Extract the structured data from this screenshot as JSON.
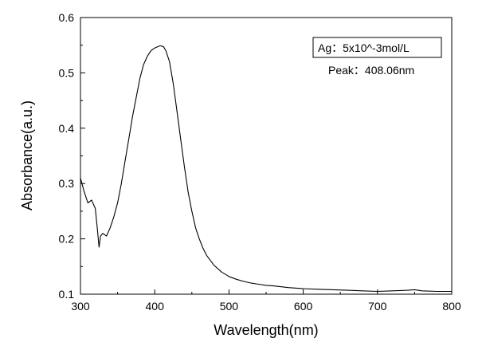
{
  "chart_data": {
    "type": "line",
    "xlabel": "Wavelength(nm)",
    "ylabel": "Absorbance(a.u.)",
    "xlim": [
      300,
      800
    ],
    "ylim": [
      0.1,
      0.6
    ],
    "xticks": [
      300,
      400,
      500,
      600,
      700,
      800
    ],
    "yticks": [
      0.1,
      0.2,
      0.3,
      0.4,
      0.5,
      0.6
    ],
    "grid": false,
    "legend_position": "top-right",
    "annotations": [
      "Ag：5x10^-3mol/L",
      "Peak：408.06nm"
    ],
    "series": [
      {
        "x": [
          300,
          305,
          310,
          315,
          320,
          323,
          325,
          327,
          330,
          335,
          340,
          345,
          350,
          355,
          360,
          365,
          370,
          375,
          380,
          385,
          390,
          395,
          400,
          405,
          408,
          412,
          415,
          420,
          425,
          430,
          435,
          440,
          445,
          450,
          455,
          460,
          465,
          470,
          480,
          490,
          500,
          510,
          520,
          530,
          540,
          550,
          560,
          580,
          600,
          620,
          640,
          660,
          680,
          700,
          720,
          740,
          750,
          760,
          780,
          800
        ],
        "y": [
          0.31,
          0.285,
          0.265,
          0.27,
          0.255,
          0.215,
          0.185,
          0.205,
          0.21,
          0.205,
          0.22,
          0.24,
          0.265,
          0.3,
          0.34,
          0.38,
          0.42,
          0.455,
          0.49,
          0.515,
          0.53,
          0.54,
          0.545,
          0.548,
          0.549,
          0.547,
          0.54,
          0.52,
          0.48,
          0.43,
          0.38,
          0.33,
          0.285,
          0.25,
          0.22,
          0.2,
          0.183,
          0.17,
          0.152,
          0.14,
          0.132,
          0.127,
          0.123,
          0.12,
          0.118,
          0.116,
          0.115,
          0.112,
          0.11,
          0.109,
          0.108,
          0.107,
          0.106,
          0.105,
          0.106,
          0.107,
          0.108,
          0.106,
          0.105,
          0.105
        ]
      }
    ]
  }
}
